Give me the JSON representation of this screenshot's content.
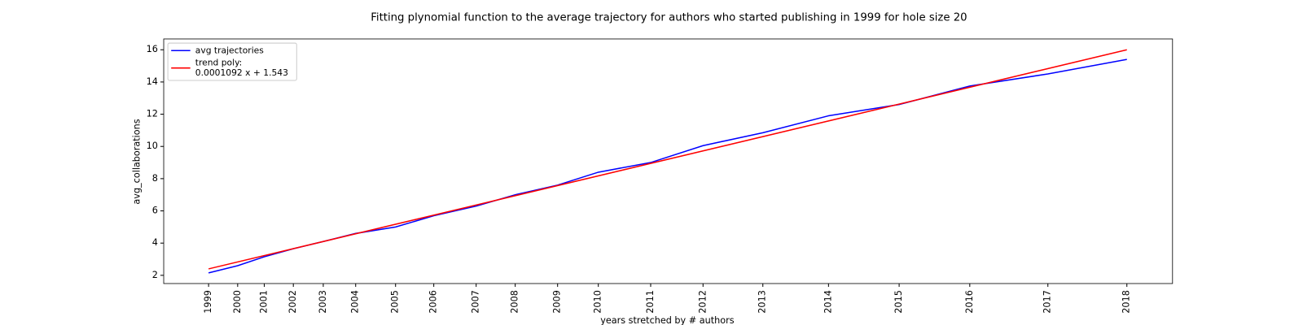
{
  "chart_data": {
    "type": "line",
    "title": "Fitting plynomial function to the average trajectory for authors who started publishing in 1999 for hole size 20",
    "xlabel": "years stretched by # authors",
    "ylabel": "avg_collaborations",
    "xlim": [
      1764,
      138582
    ],
    "ylim": [
      1.49,
      16.67
    ],
    "xticks": [
      {
        "value": 7850,
        "label": "1999"
      },
      {
        "value": 11794,
        "label": "2000"
      },
      {
        "value": 15401,
        "label": "2001"
      },
      {
        "value": 19345,
        "label": "2002"
      },
      {
        "value": 23403,
        "label": "2003"
      },
      {
        "value": 27798,
        "label": "2004"
      },
      {
        "value": 33208,
        "label": "2005"
      },
      {
        "value": 38392,
        "label": "2006"
      },
      {
        "value": 44139,
        "label": "2007"
      },
      {
        "value": 49436,
        "label": "2008"
      },
      {
        "value": 55184,
        "label": "2009"
      },
      {
        "value": 60706,
        "label": "2010"
      },
      {
        "value": 67806,
        "label": "2011"
      },
      {
        "value": 74907,
        "label": "2012"
      },
      {
        "value": 83021,
        "label": "2013"
      },
      {
        "value": 91924,
        "label": "2014"
      },
      {
        "value": 101504,
        "label": "2015"
      },
      {
        "value": 111083,
        "label": "2016"
      },
      {
        "value": 121677,
        "label": "2017"
      },
      {
        "value": 132390,
        "label": "2018"
      }
    ],
    "yticks": [
      2,
      4,
      6,
      8,
      10,
      12,
      14,
      16
    ],
    "legend": "upper left",
    "series": [
      {
        "name": "avg trajectories",
        "color": "#0000ff",
        "x": [
          7850,
          11794,
          15401,
          19345,
          23403,
          27798,
          33208,
          38392,
          44139,
          49436,
          55184,
          60706,
          67806,
          74907,
          83021,
          91924,
          101504,
          111083,
          121677,
          132390
        ],
        "values": [
          2.15,
          2.6,
          3.15,
          3.65,
          4.1,
          4.6,
          5.0,
          5.7,
          6.3,
          7.0,
          7.6,
          8.4,
          9.0,
          10.05,
          10.85,
          11.9,
          12.6,
          13.75,
          14.5,
          15.4
        ]
      },
      {
        "name": "trend poly:\n0.0001092 x + 1.543",
        "color": "#ff0000",
        "x": [
          7850,
          132390
        ],
        "values": [
          2.4,
          16.0
        ]
      }
    ]
  }
}
